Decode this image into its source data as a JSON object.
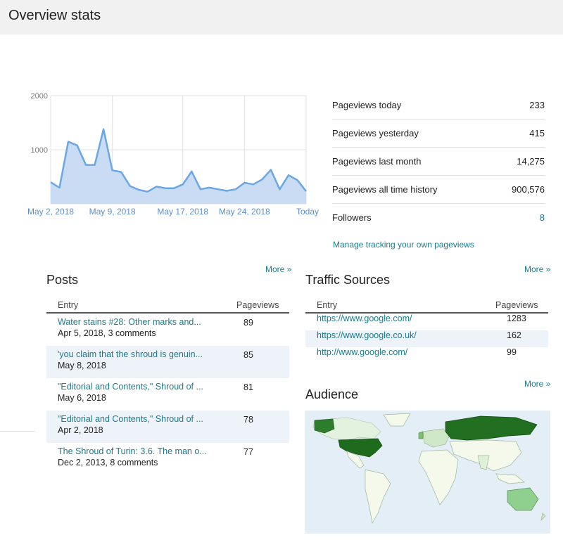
{
  "page_title": "Overview stats",
  "chart_data": {
    "type": "area",
    "x_labels": [
      "May 2, 2018",
      "May 9, 2018",
      "May 17, 2018",
      "May 24, 2018",
      "Today"
    ],
    "yticks": [
      "2000",
      "1000"
    ],
    "ylim": [
      0,
      2000
    ],
    "values": [
      400,
      300,
      1150,
      1080,
      720,
      720,
      1380,
      620,
      590,
      330,
      260,
      225,
      320,
      290,
      290,
      360,
      600,
      270,
      300,
      270,
      240,
      270,
      390,
      360,
      450,
      630,
      270,
      530,
      440,
      233
    ],
    "series_color": "#6aa7e4",
    "fill_color": "#c9dcf3"
  },
  "kpis": [
    {
      "label": "Pageviews today",
      "value": "233"
    },
    {
      "label": "Pageviews yesterday",
      "value": "415"
    },
    {
      "label": "Pageviews last month",
      "value": "14,275"
    },
    {
      "label": "Pageviews all time history",
      "value": "900,576"
    },
    {
      "label": "Followers",
      "value": "8"
    }
  ],
  "manage_link": "Manage tracking your own pageviews",
  "more_label": "More »",
  "posts": {
    "title": "Posts",
    "col_entry": "Entry",
    "col_pageviews": "Pageviews",
    "rows": [
      {
        "title": "Water stains #28: Other marks and...",
        "sub": "Apr 5, 2018, 3 comments",
        "views": "89"
      },
      {
        "title": "'you claim that the shroud is genuin...",
        "sub": "May 8, 2018",
        "views": "85"
      },
      {
        "title": "\"Editorial and Contents,\" Shroud of ...",
        "sub": "May 6, 2018",
        "views": "81"
      },
      {
        "title": "\"Editorial and Contents,\" Shroud of ...",
        "sub": "Apr 2, 2018",
        "views": "78"
      },
      {
        "title": "The Shroud of Turin: 3.6. The man o...",
        "sub": "Dec 2, 2013, 8 comments",
        "views": "77"
      }
    ]
  },
  "traffic": {
    "title": "Traffic Sources",
    "col_entry": "Entry",
    "col_pageviews": "Pageviews",
    "rows": [
      {
        "source": "https://www.google.com/",
        "views": "1283"
      },
      {
        "source": "https://www.google.co.uk/",
        "views": "162"
      },
      {
        "source": "http://www.google.com/",
        "views": "99"
      }
    ]
  },
  "audience": {
    "title": "Audience"
  }
}
